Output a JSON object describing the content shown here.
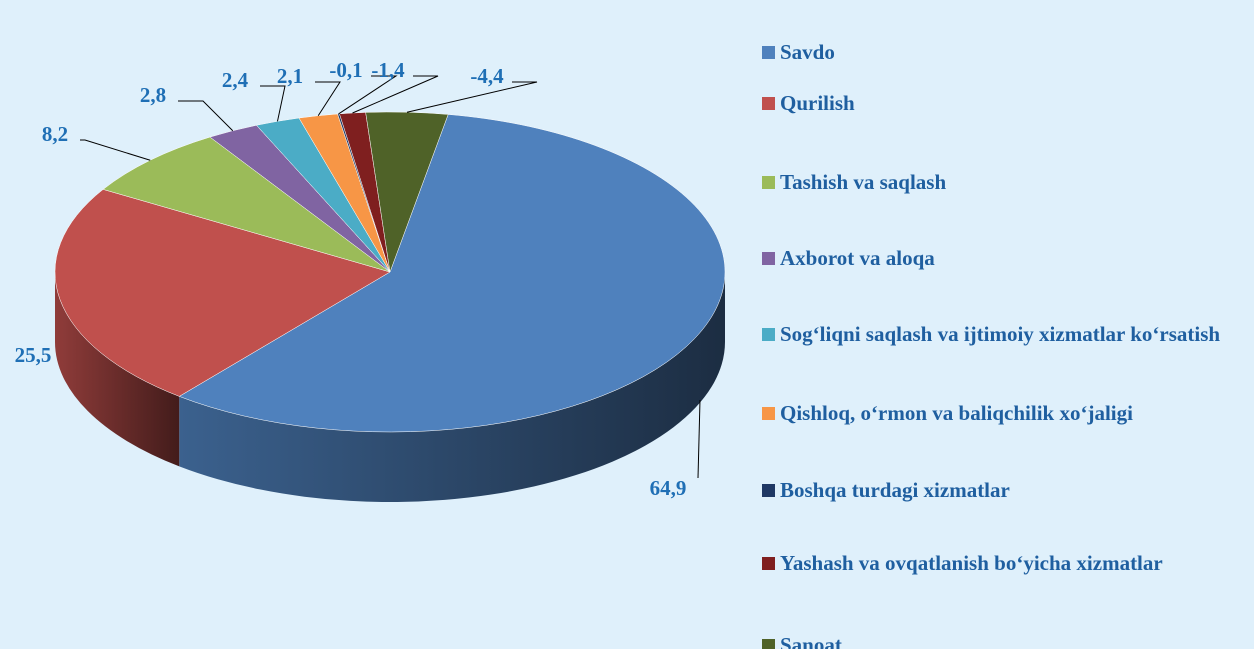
{
  "chart_data": {
    "type": "pie",
    "categories": [
      "Savdo",
      "Qurilish",
      "Tashish va saqlash",
      "Axborot va aloqa",
      "Sog‘liqni saqlash va ijtimoiy xizmatlar ko‘rsatish",
      "Qishloq, o‘rmon va baliqchilik xo‘jaligi",
      "Boshqa turdagi xizmatlar",
      "Yashash va ovqatlanish bo‘yicha xizmatlar",
      "Sanoat"
    ],
    "values": [
      64.9,
      25.5,
      8.2,
      2.8,
      2.4,
      2.1,
      -0.1,
      -1.4,
      -4.4
    ],
    "value_labels": [
      "64,9",
      "25,5",
      "8,2",
      "2,8",
      "2,4",
      "2,1",
      "-0,1",
      "-1,4",
      "-4,4"
    ],
    "colors": [
      "#4f81bd",
      "#c0504d",
      "#9bbb59",
      "#8064a2",
      "#4bacc6",
      "#f79646",
      "#1f3864",
      "#7f1f1f",
      "#4f6228"
    ]
  }
}
